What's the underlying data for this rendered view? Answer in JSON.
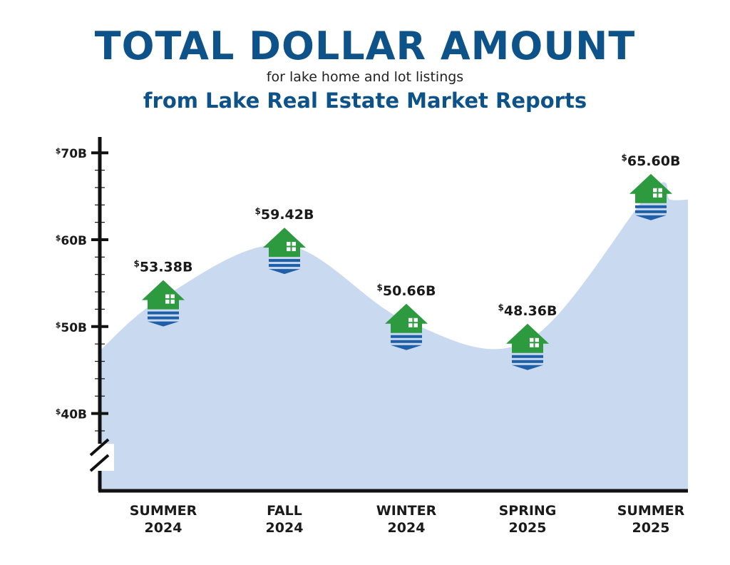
{
  "header": {
    "title": "TOTAL DOLLAR AMOUNT",
    "subtitle": "for lake home and lot listings",
    "subtitle2": "from Lake Real Estate Market Reports"
  },
  "colors": {
    "title": "#0d5289",
    "area": "#c9d9f0",
    "house": "#2e9a3f",
    "water": "#1f5fa8",
    "axis": "#111111"
  },
  "chart_data": {
    "type": "area",
    "categories": [
      {
        "line1": "SUMMER",
        "line2": "2024"
      },
      {
        "line1": "FALL",
        "line2": "2024"
      },
      {
        "line1": "WINTER",
        "line2": "2024"
      },
      {
        "line1": "SPRING",
        "line2": "2025"
      },
      {
        "line1": "SUMMER",
        "line2": "2025"
      }
    ],
    "values": [
      53.38,
      59.42,
      50.66,
      48.36,
      65.6
    ],
    "value_labels": [
      {
        "sup": "$",
        "text": "53.38B"
      },
      {
        "sup": "$",
        "text": "59.42B"
      },
      {
        "sup": "$",
        "text": "50.66B"
      },
      {
        "sup": "$",
        "text": "48.36B"
      },
      {
        "sup": "$",
        "text": "65.60B"
      }
    ],
    "y_ticks": [
      {
        "value": 70,
        "sup": "$",
        "text": "70B"
      },
      {
        "value": 60,
        "sup": "$",
        "text": "60B"
      },
      {
        "value": 50,
        "sup": "$",
        "text": "50B"
      },
      {
        "value": 40,
        "sup": "$",
        "text": "40B"
      }
    ],
    "ylim": [
      31,
      71.8
    ],
    "axis_break": true,
    "marker_icon": "lake-house-icon",
    "grid": false
  }
}
